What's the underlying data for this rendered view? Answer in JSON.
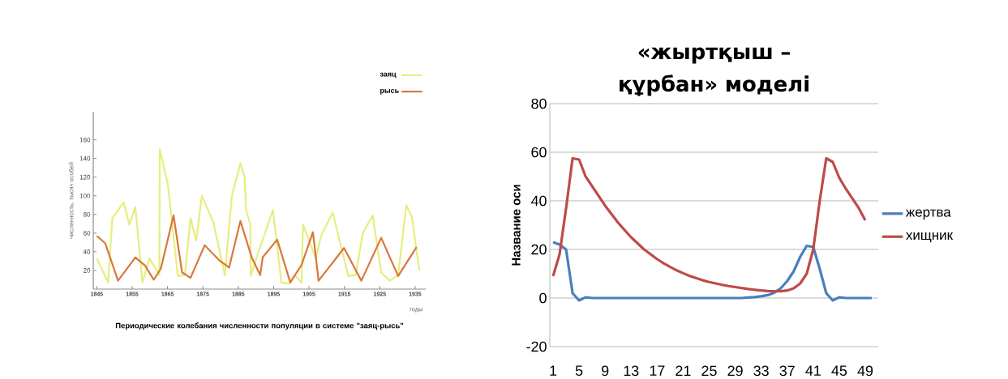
{
  "chart_data": [
    {
      "type": "line",
      "title": "Периодические колебания численности популяции в системе \"заяц-рысь\"",
      "xlabel": "годы",
      "ylabel": "численность, тысяч особей",
      "xlim": [
        1844,
        1938
      ],
      "ylim": [
        0,
        190
      ],
      "xticks": [
        1845,
        1855,
        1865,
        1875,
        1885,
        1895,
        1905,
        1915,
        1925,
        1935
      ],
      "yticks": [
        20,
        40,
        60,
        80,
        100,
        120,
        140,
        160
      ],
      "legend": "top right",
      "series": [
        {
          "name": "заяц",
          "color": "#e6ee7c",
          "x": [
            1845,
            1848.2,
            1849.4,
            1852.6,
            1854.2,
            1855.9,
            1857.9,
            1859.9,
            1862.7,
            1862.8,
            1865.1,
            1867.9,
            1869.9,
            1871.5,
            1873.1,
            1874.7,
            1878,
            1881.2,
            1883.2,
            1885.6,
            1886.8,
            1887.2,
            1888.4,
            1888.5,
            1890.4,
            1894.8,
            1897.2,
            1899.3,
            1900.9,
            1902.9,
            1903.3,
            1906.9,
            1908.5,
            1911.7,
            1916.1,
            1918.2,
            1920.2,
            1923,
            1925.4,
            1927.8,
            1930.2,
            1932.5,
            1934.1,
            1936.2
          ],
          "values": [
            33,
            7,
            76,
            93,
            69,
            88,
            7,
            33,
            15,
            150,
            112,
            14,
            15,
            76,
            52,
            100,
            71,
            15,
            100,
            135,
            120,
            85,
            69,
            14,
            36,
            85,
            7,
            6,
            15,
            7,
            69,
            33,
            58,
            82,
            14,
            15,
            60,
            79,
            18,
            9,
            15,
            90,
            77,
            20
          ]
        },
        {
          "name": "рысь",
          "color": "#d9773a",
          "x": [
            1845,
            1847.4,
            1851,
            1855.9,
            1858.7,
            1861.1,
            1863.1,
            1866.7,
            1869.1,
            1871.5,
            1875.5,
            1879.6,
            1882.4,
            1885.6,
            1888.8,
            1891.2,
            1891.9,
            1896,
            1899.7,
            1902.9,
            1906.1,
            1907.7,
            1914.9,
            1919.8,
            1925.4,
            1930.2,
            1935.4
          ],
          "values": [
            57,
            49,
            9,
            34,
            25,
            10,
            22,
            79,
            18,
            12,
            47,
            31,
            23,
            73,
            34,
            15,
            34,
            53,
            7,
            26,
            61,
            9,
            44,
            9,
            55,
            14,
            45
          ]
        }
      ]
    },
    {
      "type": "line",
      "title": "«жыртқыш –құрбан» моделі",
      "ylabel": "Название оси",
      "xlim": [
        0.5,
        51
      ],
      "ylim": [
        -20,
        80
      ],
      "xticks": [
        1,
        5,
        9,
        13,
        17,
        21,
        25,
        29,
        33,
        37,
        41,
        45,
        49
      ],
      "yticks": [
        -20,
        0,
        20,
        40,
        60,
        80
      ],
      "grid": "y",
      "legend": "right",
      "series": [
        {
          "name": "жертва",
          "color": "#4a7ebb",
          "x": [
            1,
            2,
            3,
            4,
            5,
            6,
            7,
            8,
            9,
            10,
            11,
            12,
            13,
            14,
            15,
            16,
            17,
            18,
            19,
            20,
            21,
            22,
            23,
            24,
            25,
            26,
            27,
            28,
            29,
            30,
            31,
            32,
            33,
            34,
            35,
            36,
            37,
            38,
            39,
            40,
            41,
            42,
            43,
            44,
            45,
            46,
            47,
            48,
            49,
            50
          ],
          "values": [
            23,
            22,
            20,
            2,
            -1,
            0.3,
            0,
            0,
            0,
            0,
            0,
            0,
            0,
            0,
            0,
            0,
            0,
            0,
            0,
            0,
            0,
            0,
            0,
            0,
            0,
            0,
            0,
            0,
            0,
            0,
            0.2,
            0.4,
            0.7,
            1.2,
            2.2,
            4,
            7,
            11,
            17,
            21.5,
            21,
            12,
            2,
            -1,
            0.3,
            0,
            0,
            0,
            0,
            0
          ]
        },
        {
          "name": "хищник",
          "color": "#be4b48",
          "x": [
            1,
            2,
            3,
            4,
            5,
            6,
            7,
            8,
            9,
            10,
            11,
            12,
            13,
            14,
            15,
            16,
            17,
            18,
            19,
            20,
            21,
            22,
            23,
            24,
            25,
            26,
            27,
            28,
            29,
            30,
            31,
            32,
            33,
            34,
            35,
            36,
            37,
            38,
            39,
            40,
            41,
            42,
            43,
            44,
            45,
            46,
            47,
            48,
            49
          ],
          "values": [
            9,
            18,
            37,
            57.5,
            57,
            50,
            46,
            42,
            38,
            34.5,
            31,
            28,
            25,
            22.5,
            20,
            18,
            16,
            14.3,
            12.8,
            11.4,
            10.2,
            9.1,
            8.2,
            7.3,
            6.6,
            6,
            5.4,
            4.9,
            4.5,
            4.1,
            3.7,
            3.4,
            3.1,
            2.9,
            2.8,
            2.8,
            3.1,
            4,
            6,
            10,
            20,
            40,
            57.5,
            56,
            49.5,
            45,
            41,
            37,
            32
          ]
        }
      ]
    }
  ]
}
